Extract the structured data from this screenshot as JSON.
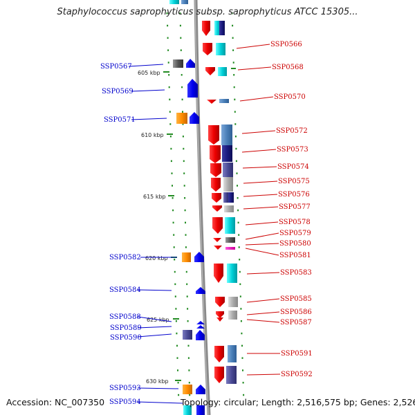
{
  "title": "Staphylococcus saprophyticus subsp. saprophyticus ATCC 15305...",
  "footer": {
    "accession": "Accession: NC_007350",
    "topology": "Topology: circular; Length: 2,516,575 bp; Genes: 2,526"
  },
  "colors": {
    "left_label": "#0000cc",
    "right_label": "#cc0000",
    "ruler_tick": "#228b22",
    "backbone": "#888888"
  },
  "kbp_labels": [
    "605 kbp",
    "610 kbp",
    "615 kbp",
    "620 kbp",
    "625 kbp",
    "630 kbp"
  ],
  "left_genes": [
    "SSP0567",
    "SSP0569",
    "SSP0571",
    "SSP0582",
    "SSP0584",
    "SSP0588",
    "SSP0589",
    "SSP0590",
    "SSP0593",
    "SSP0594"
  ],
  "right_genes": [
    "SSP0566",
    "SSP0568",
    "SSP0570",
    "SSP0572",
    "SSP0573",
    "SSP0574",
    "SSP0575",
    "SSP0576",
    "SSP0577",
    "SSP0578",
    "SSP0579",
    "SSP0580",
    "SSP0581",
    "SSP0583",
    "SSP0585",
    "SSP0586",
    "SSP0587",
    "SSP0591",
    "SSP0592"
  ]
}
